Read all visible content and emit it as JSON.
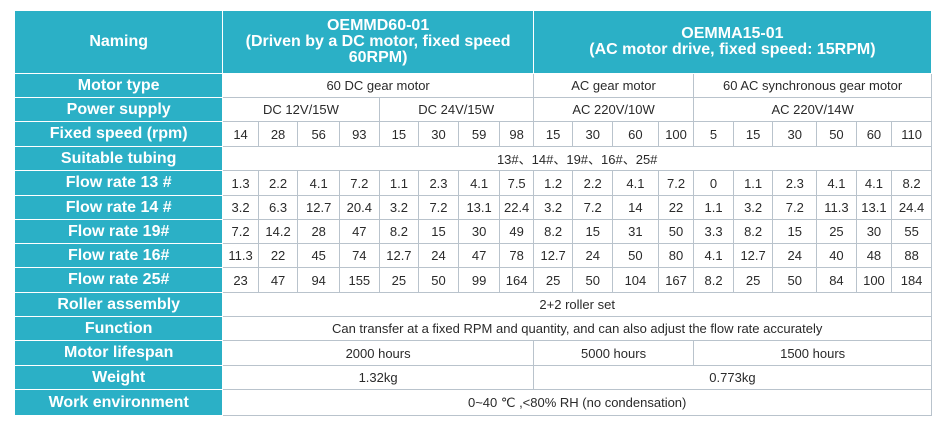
{
  "header": {
    "naming_label": "Naming",
    "dc_lines": [
      "OEMMD60-01",
      "(Driven by a DC motor,  fixed speed",
      "60RPM)"
    ],
    "ac_lines": [
      "OEMMA15-01",
      "(AC motor drive, fixed speed: 15RPM)"
    ]
  },
  "labels": {
    "motor_type": "Motor type",
    "power_supply": "Power supply",
    "fixed_speed": "Fixed speed (rpm)",
    "suitable_tubing": "Suitable tubing",
    "flow13": "Flow rate 13 #",
    "flow14": "Flow rate 14 #",
    "flow19": "Flow rate 19#",
    "flow16": "Flow rate 16#",
    "flow25": "Flow rate 25#",
    "roller_assembly": "Roller assembly",
    "function": "Function",
    "motor_lifespan": "Motor lifespan",
    "weight": "Weight",
    "work_environment": "Work environment"
  },
  "motor_type": {
    "dc": "60 DC gear motor",
    "ac_gear": "AC gear motor",
    "ac_sync": "60 AC synchronous gear motor"
  },
  "power_supply": {
    "dc12": "DC 12V/15W",
    "dc24": "DC 24V/15W",
    "ac10": "AC 220V/10W",
    "ac14": "AC 220V/14W"
  },
  "speeds": [
    "14",
    "28",
    "56",
    "93",
    "15",
    "30",
    "59",
    "98",
    "15",
    "30",
    "60",
    "100",
    "5",
    "15",
    "30",
    "50",
    "60",
    "110"
  ],
  "suitable_tubing": "13#、14#、19#、16#、25#",
  "flow13": [
    "1.3",
    "2.2",
    "4.1",
    "7.2",
    "1.1",
    "2.3",
    "4.1",
    "7.5",
    "1.2",
    "2.2",
    "4.1",
    "7.2",
    "0",
    "1.1",
    "2.3",
    "4.1",
    "4.1",
    "8.2"
  ],
  "flow14": [
    "3.2",
    "6.3",
    "12.7",
    "20.4",
    "3.2",
    "7.2",
    "13.1",
    "22.4",
    "3.2",
    "7.2",
    "14",
    "22",
    "1.1",
    "3.2",
    "7.2",
    "11.3",
    "13.1",
    "24.4"
  ],
  "flow19": [
    "7.2",
    "14.2",
    "28",
    "47",
    "8.2",
    "15",
    "30",
    "49",
    "8.2",
    "15",
    "31",
    "50",
    "3.3",
    "8.2",
    "15",
    "25",
    "30",
    "55"
  ],
  "flow16": [
    "11.3",
    "22",
    "45",
    "74",
    "12.7",
    "24",
    "47",
    "78",
    "12.7",
    "24",
    "50",
    "80",
    "4.1",
    "12.7",
    "24",
    "40",
    "48",
    "88"
  ],
  "flow25": [
    "23",
    "47",
    "94",
    "155",
    "25",
    "50",
    "99",
    "164",
    "25",
    "50",
    "104",
    "167",
    "8.2",
    "25",
    "50",
    "84",
    "100",
    "184"
  ],
  "roller_assembly": "2+2 roller set",
  "function": "Can transfer at a fixed RPM and quantity, and can also adjust the flow rate accurately",
  "motor_lifespan": {
    "dc": "2000 hours",
    "ac_gear": "5000 hours",
    "ac_sync": "1500 hours"
  },
  "weight": {
    "dc": "1.32kg",
    "ac": "0.773kg"
  },
  "work_environment": "0~40 ℃ ,<80% RH (no condensation)",
  "colors": {
    "label_bg": "#2bb0c6",
    "label_text": "#ffffff",
    "grid": "#b9c3cc"
  }
}
